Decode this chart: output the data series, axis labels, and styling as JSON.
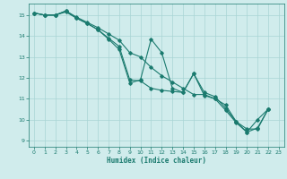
{
  "xlabel": "Humidex (Indice chaleur)",
  "background_color": "#d0ecec",
  "grid_color": "#a8d4d4",
  "line_color": "#1a7a6e",
  "xlim": [
    -0.5,
    23.5
  ],
  "ylim": [
    8.7,
    15.55
  ],
  "xticks": [
    0,
    1,
    2,
    3,
    4,
    5,
    6,
    7,
    8,
    9,
    10,
    11,
    12,
    13,
    14,
    15,
    16,
    17,
    18,
    19,
    20,
    21,
    22,
    23
  ],
  "yticks": [
    9,
    10,
    11,
    12,
    13,
    14,
    15
  ],
  "series": {
    "line1": {
      "x": [
        0,
        1,
        2,
        3,
        4,
        5,
        6,
        7,
        8,
        9,
        10,
        11,
        12,
        13,
        14,
        15,
        16,
        17,
        18,
        19,
        20,
        21,
        22
      ],
      "y": [
        15.1,
        15.0,
        15.0,
        15.15,
        14.85,
        14.6,
        14.3,
        13.85,
        13.35,
        11.75,
        11.9,
        13.85,
        13.2,
        11.5,
        11.3,
        12.2,
        11.3,
        11.1,
        10.55,
        9.9,
        9.4,
        10.0,
        10.5
      ]
    },
    "line2": {
      "x": [
        0,
        1,
        2,
        3,
        4,
        5,
        6,
        7,
        8,
        9,
        10,
        11,
        12,
        13,
        14,
        15,
        16,
        17,
        18,
        19,
        20,
        21,
        22
      ],
      "y": [
        15.1,
        15.0,
        15.0,
        15.2,
        14.9,
        14.65,
        14.4,
        14.1,
        13.8,
        13.2,
        13.0,
        12.5,
        12.1,
        11.8,
        11.5,
        11.2,
        11.2,
        11.0,
        10.7,
        9.9,
        9.55,
        9.55,
        10.5
      ]
    },
    "line3": {
      "x": [
        0,
        1,
        2,
        3,
        4,
        5,
        6,
        7,
        8,
        9,
        10,
        11,
        12,
        13,
        14,
        15,
        16,
        17,
        18,
        19,
        20,
        21,
        22
      ],
      "y": [
        15.1,
        15.0,
        15.0,
        15.2,
        14.85,
        14.6,
        14.3,
        13.9,
        13.5,
        11.9,
        11.85,
        11.5,
        11.4,
        11.35,
        11.3,
        12.2,
        11.15,
        11.0,
        10.45,
        9.85,
        9.4,
        9.6,
        10.5
      ]
    }
  }
}
